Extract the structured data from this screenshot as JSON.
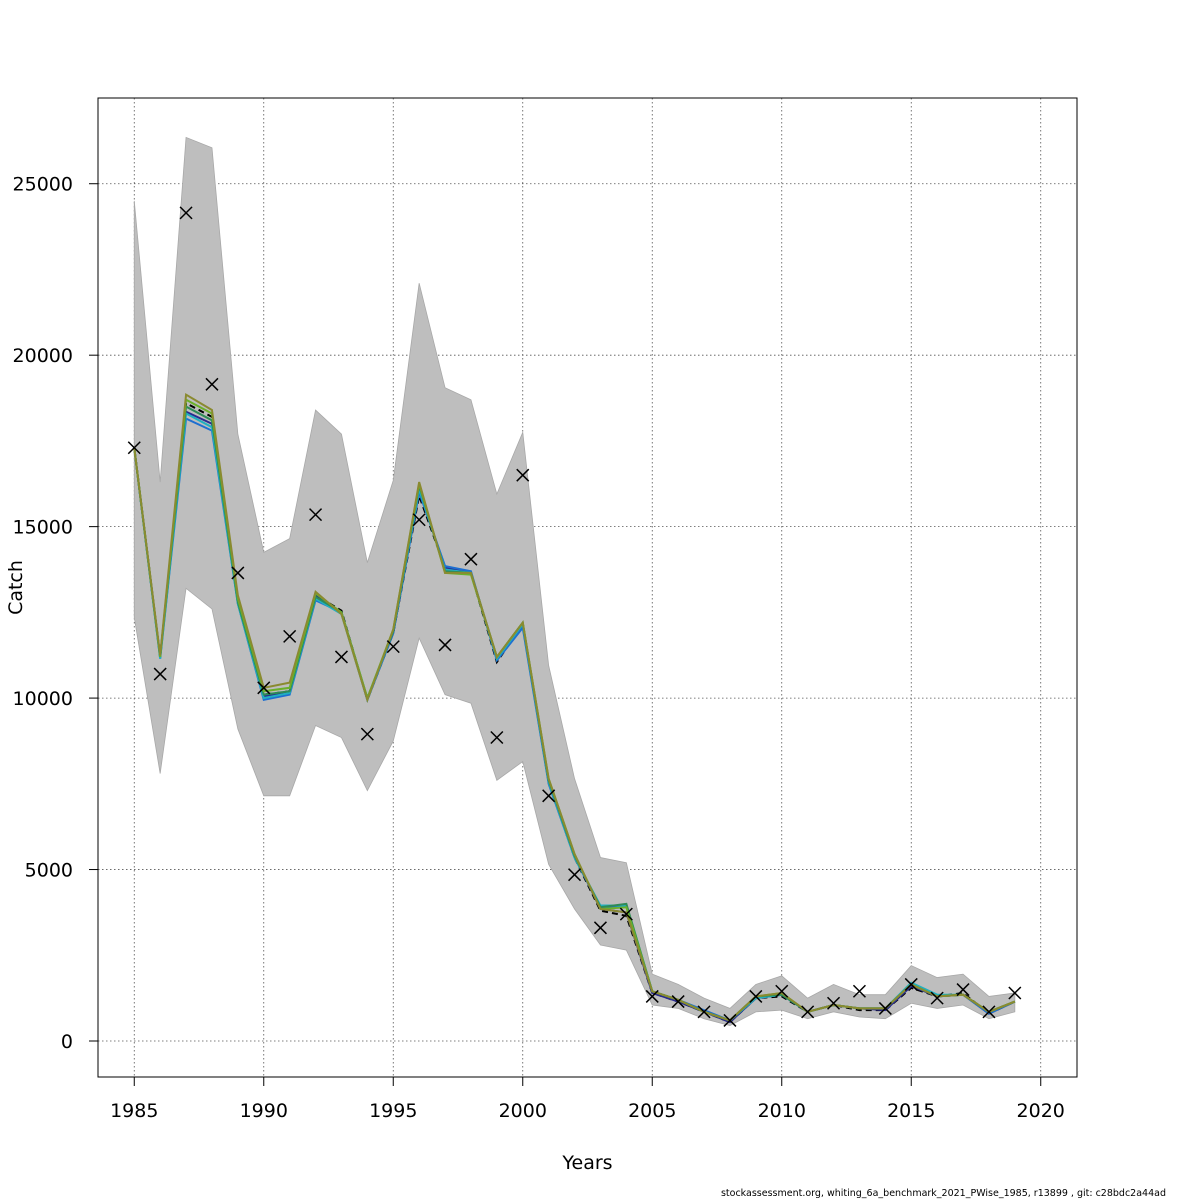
{
  "chart_data": {
    "type": "line",
    "title": "",
    "xlabel": "Years",
    "ylabel": "Catch",
    "xlim": [
      1983.6,
      2021.4
    ],
    "ylim": [
      -1050,
      27500
    ],
    "x_ticks": [
      1985,
      1990,
      1995,
      2000,
      2005,
      2010,
      2015,
      2020
    ],
    "y_ticks": [
      0,
      5000,
      10000,
      15000,
      20000,
      25000
    ],
    "grid": true,
    "x": [
      1985,
      1986,
      1987,
      1988,
      1989,
      1990,
      1991,
      1992,
      1993,
      1994,
      1995,
      1996,
      1997,
      1998,
      1999,
      2000,
      2001,
      2002,
      2003,
      2004,
      2005,
      2006,
      2007,
      2008,
      2009,
      2010,
      2011,
      2012,
      2013,
      2014,
      2015,
      2016,
      2017,
      2018,
      2019
    ],
    "observed": [
      17300,
      10700,
      24150,
      19150,
      13650,
      10300,
      11800,
      15350,
      11200,
      8950,
      11500,
      15200,
      11550,
      14050,
      8850,
      16500,
      7150,
      4850,
      3300,
      3700,
      1300,
      1150,
      850,
      600,
      1300,
      1450,
      850,
      1100,
      1450,
      950,
      1650,
      1250,
      1500,
      850,
      1400
    ],
    "confidence_band": {
      "upper": [
        24500,
        16300,
        26350,
        26050,
        17700,
        14250,
        14650,
        18400,
        17700,
        13950,
        16350,
        22100,
        19050,
        18700,
        15950,
        17750,
        10950,
        7650,
        5350,
        5200,
        1950,
        1650,
        1250,
        950,
        1650,
        1900,
        1250,
        1650,
        1350,
        1350,
        2200,
        1850,
        1950,
        1300,
        1400
      ],
      "lower": [
        12350,
        7800,
        13200,
        12600,
        9100,
        7150,
        7150,
        9200,
        8850,
        7300,
        8750,
        11750,
        10100,
        9850,
        7600,
        8150,
        5150,
        3850,
        2800,
        2650,
        1050,
        950,
        650,
        450,
        850,
        900,
        650,
        850,
        700,
        650,
        1100,
        950,
        1050,
        650,
        850
      ]
    },
    "series": [
      {
        "color": "#000000",
        "dash": "6,4",
        "values": [
          17300,
          11200,
          18600,
          18200,
          12900,
          10100,
          10200,
          13000,
          12550,
          9950,
          11900,
          15900,
          13800,
          13650,
          11050,
          12150,
          7550,
          5350,
          3800,
          3650,
          1400,
          1150,
          850,
          550,
          1250,
          1300,
          850,
          1050,
          900,
          900,
          1550,
          1300,
          1400,
          800,
          1150
        ]
      },
      {
        "color": "#2a2a90",
        "dash": "",
        "values": [
          17300,
          11200,
          18350,
          18000,
          12850,
          10050,
          10200,
          13000,
          12500,
          9950,
          11900,
          16050,
          13800,
          13650,
          11150,
          12100,
          7550,
          5400,
          3850,
          3750,
          1400,
          1150,
          850,
          550,
          1250,
          1350,
          850,
          1050,
          950,
          900,
          1600,
          1300,
          1350,
          800,
          1150
        ]
      },
      {
        "color": "#1e6fd0",
        "dash": "",
        "values": [
          17300,
          11150,
          18150,
          17800,
          12750,
          9950,
          10100,
          12850,
          12500,
          9950,
          11900,
          16000,
          13850,
          13700,
          11100,
          12050,
          7500,
          5350,
          3900,
          3950,
          1450,
          1200,
          900,
          600,
          1250,
          1350,
          850,
          1050,
          950,
          950,
          1650,
          1300,
          1350,
          800,
          1150
        ]
      },
      {
        "color": "#20b0c0",
        "dash": "",
        "values": [
          17300,
          11150,
          18300,
          17900,
          12750,
          10000,
          10150,
          12900,
          12450,
          9950,
          11950,
          16100,
          13750,
          13650,
          11150,
          12150,
          7550,
          5350,
          3950,
          3950,
          1450,
          1200,
          850,
          600,
          1250,
          1350,
          850,
          1050,
          950,
          950,
          1700,
          1350,
          1350,
          850,
          1150
        ]
      },
      {
        "color": "#2e8b57",
        "dash": "",
        "values": [
          17300,
          11200,
          18500,
          18100,
          12800,
          10100,
          10200,
          12950,
          12500,
          10000,
          11950,
          16200,
          13700,
          13650,
          11200,
          12200,
          7600,
          5400,
          3900,
          4000,
          1450,
          1200,
          850,
          600,
          1300,
          1350,
          850,
          1050,
          950,
          950,
          1650,
          1300,
          1350,
          850,
          1150
        ]
      },
      {
        "color": "#6ab02a",
        "dash": "",
        "values": [
          17300,
          11200,
          18700,
          18300,
          12900,
          10200,
          10300,
          13050,
          12500,
          10000,
          12000,
          16250,
          13650,
          13600,
          11200,
          12200,
          7650,
          5450,
          3850,
          3900,
          1450,
          1200,
          850,
          600,
          1300,
          1400,
          850,
          1050,
          950,
          950,
          1650,
          1300,
          1350,
          850,
          1150
        ]
      },
      {
        "color": "#8a8a30",
        "dash": "",
        "values": [
          17300,
          11250,
          18850,
          18400,
          13000,
          10300,
          10450,
          13100,
          12450,
          9950,
          12000,
          16300,
          13650,
          13650,
          11200,
          12200,
          7650,
          5450,
          3850,
          3750,
          1450,
          1200,
          850,
          600,
          1300,
          1400,
          850,
          1050,
          950,
          950,
          1650,
          1300,
          1350,
          850,
          1150
        ]
      }
    ]
  },
  "footer": "stockassessment.org, whiting_6a_benchmark_2021_PWise_1985, r13899 , git: c28bdc2a44ad"
}
